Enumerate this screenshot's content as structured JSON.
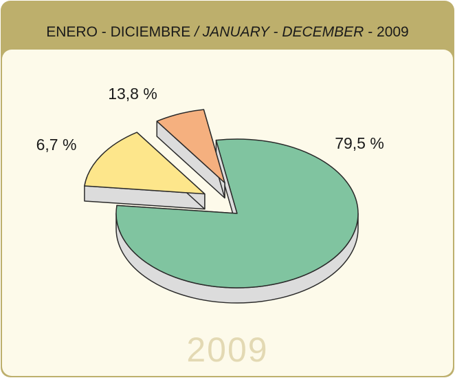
{
  "chart_data": {
    "type": "pie",
    "title": [
      "ENERO - DICIEMBRE",
      "/ JANUARY - DECEMBER",
      "- 2009"
    ],
    "values": [
      79.5,
      13.8,
      6.7
    ],
    "value_labels": [
      "79,5 %",
      "13,8 %",
      "6,7 %"
    ],
    "colors": [
      "#80c4a0",
      "#fde68b",
      "#f5b07f"
    ],
    "year_label": "2009"
  }
}
